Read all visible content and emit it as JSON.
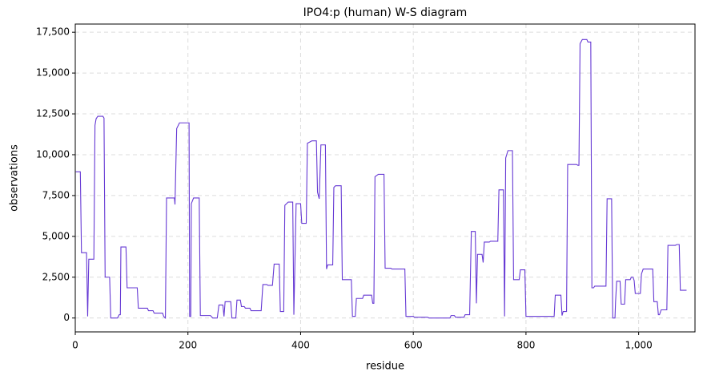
{
  "chart_data": {
    "type": "line",
    "title": "IPO4:p (human) W-S diagram",
    "xlabel": "residue",
    "ylabel": "observations",
    "color": "#6639d4",
    "grid": true,
    "xlim": [
      0,
      1100
    ],
    "ylim": [
      -850,
      18000
    ],
    "xticks": [
      0,
      200,
      400,
      600,
      800,
      {
        "value": 1000,
        "label": "1,000"
      }
    ],
    "yticks": [
      0,
      {
        "value": 2500,
        "label": "2,500"
      },
      {
        "value": 5000,
        "label": "5,000"
      },
      {
        "value": 7500,
        "label": "7,500"
      },
      {
        "value": 10000,
        "label": "10,000"
      },
      {
        "value": 12500,
        "label": "12,500"
      },
      {
        "value": 15000,
        "label": "15,000"
      },
      {
        "value": 17500,
        "label": "17,500"
      }
    ],
    "x": [
      1,
      9,
      11,
      20,
      22,
      24,
      33,
      35,
      37,
      40,
      49,
      51,
      53,
      61,
      63,
      75,
      78,
      80,
      81,
      90,
      92,
      110,
      112,
      128,
      130,
      138,
      140,
      155,
      157,
      160,
      162,
      176,
      177,
      180,
      185,
      202,
      203,
      205,
      206,
      210,
      220,
      222,
      240,
      244,
      252,
      255,
      262,
      264,
      266,
      276,
      278,
      285,
      287,
      293,
      295,
      300,
      302,
      310,
      312,
      330,
      333,
      340,
      342,
      350,
      353,
      362,
      364,
      370,
      372,
      378,
      386,
      388,
      392,
      400,
      402,
      410,
      412,
      420,
      428,
      430,
      433,
      436,
      444,
      446,
      448,
      457,
      459,
      462,
      472,
      474,
      490,
      492,
      497,
      499,
      510,
      512,
      526,
      528,
      530,
      532,
      538,
      548,
      550,
      560,
      562,
      585,
      587,
      600,
      602,
      625,
      628,
      665,
      667,
      673,
      675,
      690,
      692,
      700,
      703,
      710,
      712,
      714,
      722,
      724,
      726,
      735,
      737,
      750,
      752,
      760,
      762,
      764,
      768,
      776,
      778,
      788,
      790,
      798,
      800,
      850,
      852,
      862,
      864,
      866,
      872,
      874,
      890,
      892,
      894,
      896,
      900,
      908,
      910,
      915,
      917,
      920,
      922,
      942,
      944,
      952,
      954,
      958,
      959,
      961,
      967,
      969,
      975,
      977,
      985,
      987,
      990,
      992,
      994,
      1003,
      1005,
      1008,
      1025,
      1027,
      1033,
      1035,
      1037,
      1040,
      1050,
      1052,
      1065,
      1068,
      1072,
      1074,
      1085
    ],
    "values": [
      8950,
      8950,
      4000,
      4000,
      100,
      3600,
      3600,
      11800,
      12200,
      12350,
      12350,
      12250,
      2500,
      2500,
      0,
      0,
      200,
      200,
      4350,
      4350,
      1850,
      1850,
      600,
      600,
      450,
      450,
      300,
      300,
      100,
      0,
      7350,
      7350,
      6950,
      11600,
      11950,
      11950,
      100,
      100,
      7000,
      7350,
      7350,
      150,
      150,
      0,
      0,
      800,
      800,
      100,
      1000,
      1000,
      0,
      0,
      1100,
      1100,
      700,
      700,
      600,
      600,
      450,
      450,
      2050,
      2050,
      2000,
      2000,
      3300,
      3300,
      400,
      400,
      6900,
      7100,
      7100,
      200,
      7000,
      7000,
      5800,
      5800,
      10700,
      10850,
      10850,
      7700,
      7300,
      10600,
      10600,
      3000,
      3250,
      3250,
      8000,
      8100,
      8100,
      2350,
      2350,
      100,
      100,
      1200,
      1200,
      1400,
      1400,
      900,
      900,
      8650,
      8800,
      8800,
      3050,
      3050,
      3000,
      3000,
      100,
      100,
      50,
      50,
      0,
      0,
      150,
      150,
      50,
      50,
      200,
      200,
      5300,
      5300,
      900,
      3900,
      3900,
      3400,
      4650,
      4650,
      4700,
      4700,
      7850,
      7850,
      100,
      9800,
      10250,
      10250,
      2350,
      2350,
      2950,
      2950,
      100,
      100,
      1400,
      1400,
      150,
      400,
      400,
      9400,
      9400,
      9350,
      9350,
      16800,
      17050,
      17050,
      16900,
      16900,
      1850,
      1850,
      1950,
      1950,
      7300,
      7300,
      0,
      0,
      1000,
      2250,
      2250,
      850,
      850,
      2350,
      2350,
      2500,
      2500,
      2300,
      1500,
      1500,
      2700,
      3000,
      3000,
      1000,
      1000,
      200,
      200,
      500,
      500,
      4450,
      4450,
      4500,
      4500,
      1700,
      1700
    ]
  }
}
